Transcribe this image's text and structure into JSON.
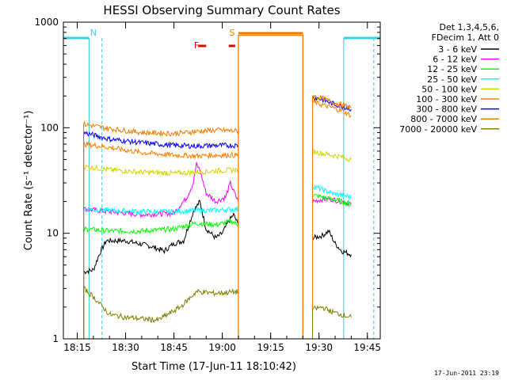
{
  "chart_data": {
    "type": "line",
    "title": "HESSI Observing Summary Count Rates",
    "xlabel": "Start Time (17-Jun-11 18:10:42)",
    "ylabel": "Count Rate (s⁻¹ detector⁻¹)",
    "y_scale": "log",
    "ylim": [
      1,
      1000
    ],
    "xlim": [
      "18:10:42",
      "19:49:00"
    ],
    "x_ticks": [
      "18:15",
      "18:30",
      "18:45",
      "19:00",
      "19:15",
      "19:30",
      "19:45"
    ],
    "y_ticks": [
      "1",
      "10",
      "100",
      "1000"
    ],
    "grid": false,
    "legend_position": "right",
    "legend_header": [
      "Det 1,3,4,5,6,",
      "FDecim 1, Att 0"
    ],
    "footer": "17-Jun-2011 23:19",
    "annotations": [
      {
        "text": "N",
        "time": "18:20",
        "color": "#33d0e0"
      },
      {
        "text": "F",
        "time": "18:52",
        "color": "#e00000"
      },
      {
        "text": "S",
        "time": "19:03",
        "color": "#ee7b00"
      }
    ],
    "flare_flag_intervals": [
      [
        "18:52:30",
        "18:55:00"
      ],
      [
        "19:02:00",
        "19:04:00"
      ]
    ],
    "saa_interval": [
      "19:05",
      "19:25"
    ],
    "night_intervals": [
      [
        "18:10:42",
        "18:18:40"
      ],
      [
        "19:37:40",
        "19:49:00"
      ]
    ],
    "vertical_markers": [
      {
        "time": "18:18:40",
        "style": "solid",
        "color": "#33d0e0"
      },
      {
        "time": "18:22:40",
        "style": "dashed",
        "color": "#33d0e0"
      },
      {
        "time": "19:05:00",
        "style": "solid",
        "color": "#ee7b00"
      },
      {
        "time": "19:25:00",
        "style": "dashed",
        "color": "#ee7b00"
      },
      {
        "time": "19:37:40",
        "style": "solid",
        "color": "#33d0e0"
      },
      {
        "time": "19:47:00",
        "style": "dashed",
        "color": "#33d0e0"
      }
    ],
    "series": [
      {
        "name": "3 - 6 keV",
        "color": "#000000",
        "segments": [
          [
            [
              "18:17",
              4.3
            ],
            [
              "18:20",
              4.5
            ],
            [
              "18:22",
              6.5
            ],
            [
              "18:24",
              8.5
            ],
            [
              "18:30",
              8.5
            ],
            [
              "18:38",
              7.5
            ],
            [
              "18:42",
              6.8
            ],
            [
              "18:45",
              8
            ],
            [
              "18:48",
              8.5
            ],
            [
              "18:51",
              16
            ],
            [
              "18:53",
              20
            ],
            [
              "18:55",
              11
            ],
            [
              "18:58",
              9
            ],
            [
              "19:00",
              10
            ],
            [
              "19:02",
              13
            ],
            [
              "19:03.5",
              15
            ],
            [
              "19:05",
              12
            ]
          ],
          [
            [
              "19:28",
              9
            ],
            [
              "19:31",
              9.5
            ],
            [
              "19:33",
              10.5
            ],
            [
              "19:35",
              8
            ],
            [
              "19:37",
              6.8
            ],
            [
              "19:40",
              6.3
            ]
          ]
        ]
      },
      {
        "name": "6 - 12 keV",
        "color": "#ff00ff",
        "segments": [
          [
            [
              "18:17",
              17
            ],
            [
              "18:25",
              16
            ],
            [
              "18:35",
              15
            ],
            [
              "18:45",
              15.5
            ],
            [
              "18:49",
              22
            ],
            [
              "18:51",
              30
            ],
            [
              "18:52",
              45
            ],
            [
              "18:53",
              40
            ],
            [
              "18:55",
              24
            ],
            [
              "18:58",
              20
            ],
            [
              "19:01",
              22
            ],
            [
              "19:02.5",
              30
            ],
            [
              "19:03.5",
              25
            ],
            [
              "19:05",
              20
            ]
          ],
          [
            [
              "19:28",
              20
            ],
            [
              "19:31",
              21
            ],
            [
              "19:34",
              21
            ],
            [
              "19:37",
              20
            ],
            [
              "19:40",
              19
            ]
          ]
        ]
      },
      {
        "name": "12 - 25 keV",
        "color": "#00ff00",
        "segments": [
          [
            [
              "18:17",
              11
            ],
            [
              "18:25",
              10.5
            ],
            [
              "18:35",
              10.5
            ],
            [
              "18:45",
              11
            ],
            [
              "18:52",
              12.5
            ],
            [
              "18:58",
              12
            ],
            [
              "19:03",
              13
            ],
            [
              "19:05",
              12
            ]
          ],
          [
            [
              "19:28",
              23
            ],
            [
              "19:31",
              22
            ],
            [
              "19:34",
              21
            ],
            [
              "19:37",
              20
            ],
            [
              "19:40",
              19
            ]
          ]
        ]
      },
      {
        "name": "25 - 50 keV",
        "color": "#00ffff",
        "segments": [
          [
            [
              "18:17",
              17
            ],
            [
              "18:25",
              16.5
            ],
            [
              "18:35",
              16
            ],
            [
              "18:45",
              16
            ],
            [
              "18:52",
              16.5
            ],
            [
              "18:58",
              16.5
            ],
            [
              "19:05",
              17
            ]
          ],
          [
            [
              "19:28",
              28
            ],
            [
              "19:31",
              26
            ],
            [
              "19:34",
              24
            ],
            [
              "19:37",
              23
            ],
            [
              "19:40",
              22
            ]
          ]
        ]
      },
      {
        "name": "50 - 100 keV",
        "color": "#d4d400",
        "segments": [
          [
            [
              "18:17",
              43
            ],
            [
              "18:25",
              40
            ],
            [
              "18:35",
              38
            ],
            [
              "18:45",
              37
            ],
            [
              "18:52",
              38
            ],
            [
              "18:58",
              39
            ],
            [
              "19:05",
              40
            ]
          ],
          [
            [
              "19:28",
              60
            ],
            [
              "19:31",
              57
            ],
            [
              "19:34",
              55
            ],
            [
              "19:37",
              53
            ],
            [
              "19:40",
              50
            ]
          ]
        ]
      },
      {
        "name": "100 - 300 keV",
        "color": "#ff7f00",
        "segments": [
          [
            [
              "18:17",
              70
            ],
            [
              "18:25",
              65
            ],
            [
              "18:35",
              58
            ],
            [
              "18:45",
              55
            ],
            [
              "18:52",
              54
            ],
            [
              "18:58",
              55
            ],
            [
              "19:05",
              55
            ]
          ],
          [
            [
              "19:28",
              175
            ],
            [
              "19:31",
              165
            ],
            [
              "19:34",
              155
            ],
            [
              "19:37",
              145
            ],
            [
              "19:40",
              130
            ]
          ]
        ]
      },
      {
        "name": "300 - 800 keV",
        "color": "#0000ff",
        "segments": [
          [
            [
              "18:17",
              90
            ],
            [
              "18:25",
              78
            ],
            [
              "18:35",
              72
            ],
            [
              "18:45",
              68
            ],
            [
              "18:52",
              67
            ],
            [
              "18:58",
              68
            ],
            [
              "19:05",
              68
            ]
          ],
          [
            [
              "19:28",
              195
            ],
            [
              "19:31",
              185
            ],
            [
              "19:34",
              170
            ],
            [
              "19:37",
              160
            ],
            [
              "19:40",
              150
            ]
          ]
        ]
      },
      {
        "name": "800 - 7000 keV",
        "color": "#ee7b00",
        "segments": [
          [
            [
              "18:17",
              108
            ],
            [
              "18:25",
              98
            ],
            [
              "18:35",
              90
            ],
            [
              "18:45",
              88
            ],
            [
              "18:52",
              92
            ],
            [
              "18:58",
              95
            ],
            [
              "19:05",
              93
            ]
          ],
          [
            [
              "19:28",
              200
            ],
            [
              "19:31",
              190
            ],
            [
              "19:34",
              175
            ],
            [
              "19:37",
              165
            ],
            [
              "19:40",
              155
            ]
          ]
        ]
      },
      {
        "name": "7000 - 20000 keV",
        "color": "#808000",
        "segments": [
          [
            [
              "18:17",
              3
            ],
            [
              "18:20",
              2.5
            ],
            [
              "18:25",
              1.7
            ],
            [
              "18:30",
              1.6
            ],
            [
              "18:40",
              1.5
            ],
            [
              "18:47",
              2
            ],
            [
              "18:52",
              2.8
            ],
            [
              "18:58",
              2.7
            ],
            [
              "19:05",
              2.8
            ]
          ],
          [
            [
              "19:28",
              1.9
            ],
            [
              "19:31",
              2
            ],
            [
              "19:34",
              1.8
            ],
            [
              "19:37",
              1.7
            ],
            [
              "19:40",
              1.6
            ]
          ]
        ]
      },
      {
        "name": "800 - 7000 keV",
        "color": "#ee7b00",
        "saa_level": 750
      }
    ]
  }
}
